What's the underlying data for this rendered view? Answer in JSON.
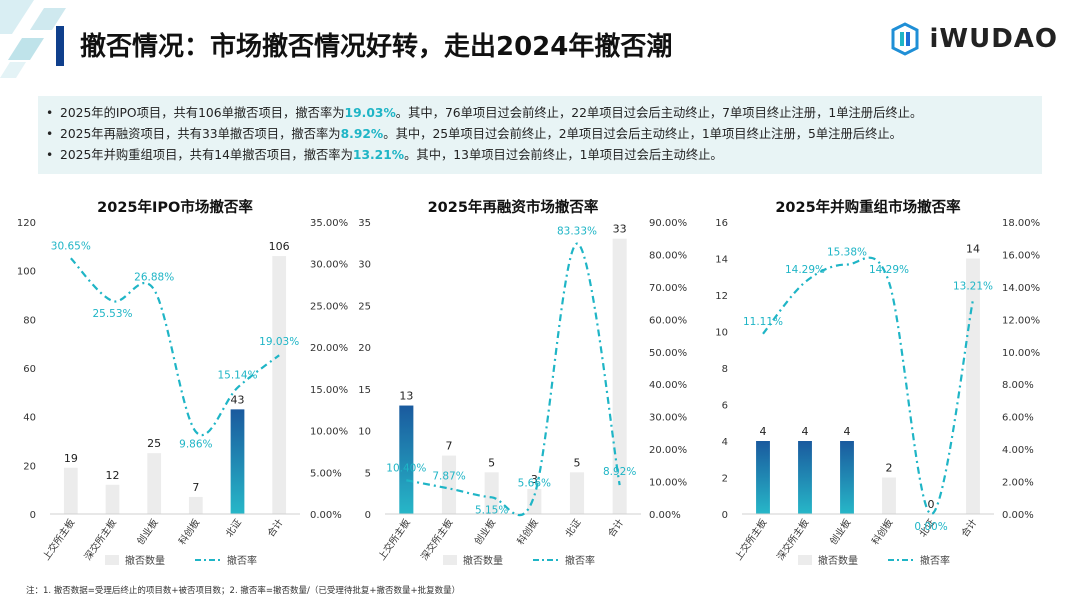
{
  "title": "撤否情况：市场撤否情况好转，走出2024年撤否潮",
  "logo": {
    "text": "iWUDAO",
    "icon": "iwudao-logo-icon"
  },
  "summary": [
    {
      "pre": "2025年的IPO项目，共有106单撤否项目，撤否率为",
      "rate": "19.03%",
      "post": "。其中，76单项目过会前终止，22单项目过会后主动终止，7单项目终止注册，1单注册后终止。"
    },
    {
      "pre": "2025年再融资项目，共有33单撤否项目，撤否率为",
      "rate": "8.92%",
      "post": "。其中，25单项目过会前终止，2单项目过会后主动终止，1单项目终止注册，5单注册后终止。"
    },
    {
      "pre": "2025年并购重组项目，共有14单撤否项目，撤否率为",
      "rate": "13.21%",
      "post": "。其中，13单项目过会前终止，1单项目过会后主动终止。"
    }
  ],
  "colors": {
    "accent": "#1fb5c6",
    "bar_gray": "#ececec",
    "bar_blue_top": "#1a5a9e",
    "bar_blue_bottom": "#27b7c8"
  },
  "chart_data": [
    {
      "type": "bar+line",
      "title": "2025年IPO市场撤否率",
      "categories": [
        "上交所主板",
        "深交所主板",
        "创业板",
        "科创板",
        "北证",
        "合计"
      ],
      "series": [
        {
          "name": "撤否数量",
          "type": "bar",
          "axis": "left",
          "values": [
            19,
            12,
            25,
            7,
            43,
            106
          ],
          "labels": [
            "19",
            "12",
            "25",
            "7",
            "43",
            "106"
          ],
          "highlight_index": 4
        },
        {
          "name": "撤否率",
          "type": "line",
          "axis": "right",
          "values": [
            30.65,
            25.53,
            26.88,
            9.86,
            15.14,
            19.03
          ],
          "labels": [
            "30.65%",
            "25.53%",
            "26.88%",
            "9.86%",
            "15.14%",
            "19.03%"
          ]
        }
      ],
      "y_left": {
        "min": 0,
        "max": 120,
        "ticks": [
          "0",
          "20",
          "40",
          "60",
          "80",
          "100",
          "120"
        ]
      },
      "y_right": {
        "min": 0,
        "max": 35,
        "ticks": [
          "0.00%",
          "5.00%",
          "10.00%",
          "15.00%",
          "20.00%",
          "25.00%",
          "30.00%",
          "35.00%"
        ]
      },
      "legend_position": "bottom",
      "grid": false
    },
    {
      "type": "bar+line",
      "title": "2025年再融资市场撤否率",
      "categories": [
        "上交所主板",
        "深交所主板",
        "创业板",
        "科创板",
        "北证",
        "合计"
      ],
      "series": [
        {
          "name": "撤否数量",
          "type": "bar",
          "axis": "left",
          "values": [
            13,
            7,
            5,
            3,
            5,
            33
          ],
          "labels": [
            "13",
            "7",
            "5",
            "3",
            "5",
            "33"
          ],
          "highlight_index": 0
        },
        {
          "name": "撤否率",
          "type": "line",
          "axis": "right",
          "values": [
            10.4,
            7.87,
            5.15,
            5.66,
            83.33,
            8.92
          ],
          "labels": [
            "10.40%",
            "7.87%",
            "5.15%",
            "5.66%",
            "83.33%",
            "8.92%"
          ]
        }
      ],
      "y_left": {
        "min": 0,
        "max": 35,
        "ticks": [
          "0",
          "5",
          "10",
          "15",
          "20",
          "25",
          "30",
          "35"
        ]
      },
      "y_right": {
        "min": 0,
        "max": 90,
        "ticks": [
          "0.00%",
          "10.00%",
          "20.00%",
          "30.00%",
          "40.00%",
          "50.00%",
          "60.00%",
          "70.00%",
          "80.00%",
          "90.00%"
        ]
      },
      "legend_position": "bottom",
      "grid": false
    },
    {
      "type": "bar+line",
      "title": "2025年并购重组市场撤否率",
      "categories": [
        "上交所主板",
        "深交所主板",
        "创业板",
        "科创板",
        "北证",
        "合计"
      ],
      "series": [
        {
          "name": "撤否数量",
          "type": "bar",
          "axis": "left",
          "values": [
            4,
            4,
            4,
            2,
            0,
            14
          ],
          "labels": [
            "4",
            "4",
            "4",
            "2",
            "0",
            "14"
          ],
          "highlight_indices": [
            0,
            1,
            2
          ]
        },
        {
          "name": "撤否率",
          "type": "line",
          "axis": "right",
          "values": [
            11.11,
            14.29,
            15.38,
            14.29,
            0,
            13.21
          ],
          "labels": [
            "11.11%",
            "14.29%",
            "15.38%",
            "14.29%",
            "0.00%",
            "13.21%"
          ]
        }
      ],
      "y_left": {
        "min": 0,
        "max": 16,
        "ticks": [
          "0",
          "2",
          "4",
          "6",
          "8",
          "10",
          "12",
          "14",
          "16"
        ]
      },
      "y_right": {
        "min": 0,
        "max": 18,
        "ticks": [
          "0.00%",
          "2.00%",
          "4.00%",
          "6.00%",
          "8.00%",
          "10.00%",
          "12.00%",
          "14.00%",
          "16.00%",
          "18.00%"
        ]
      },
      "legend_position": "bottom",
      "grid": false
    }
  ],
  "footnote": "注：1. 撤否数据=受理后终止的项目数+被否项目数；2. 撤否率=撤否数量/（已受理待批复+撤否数量+批复数量）"
}
